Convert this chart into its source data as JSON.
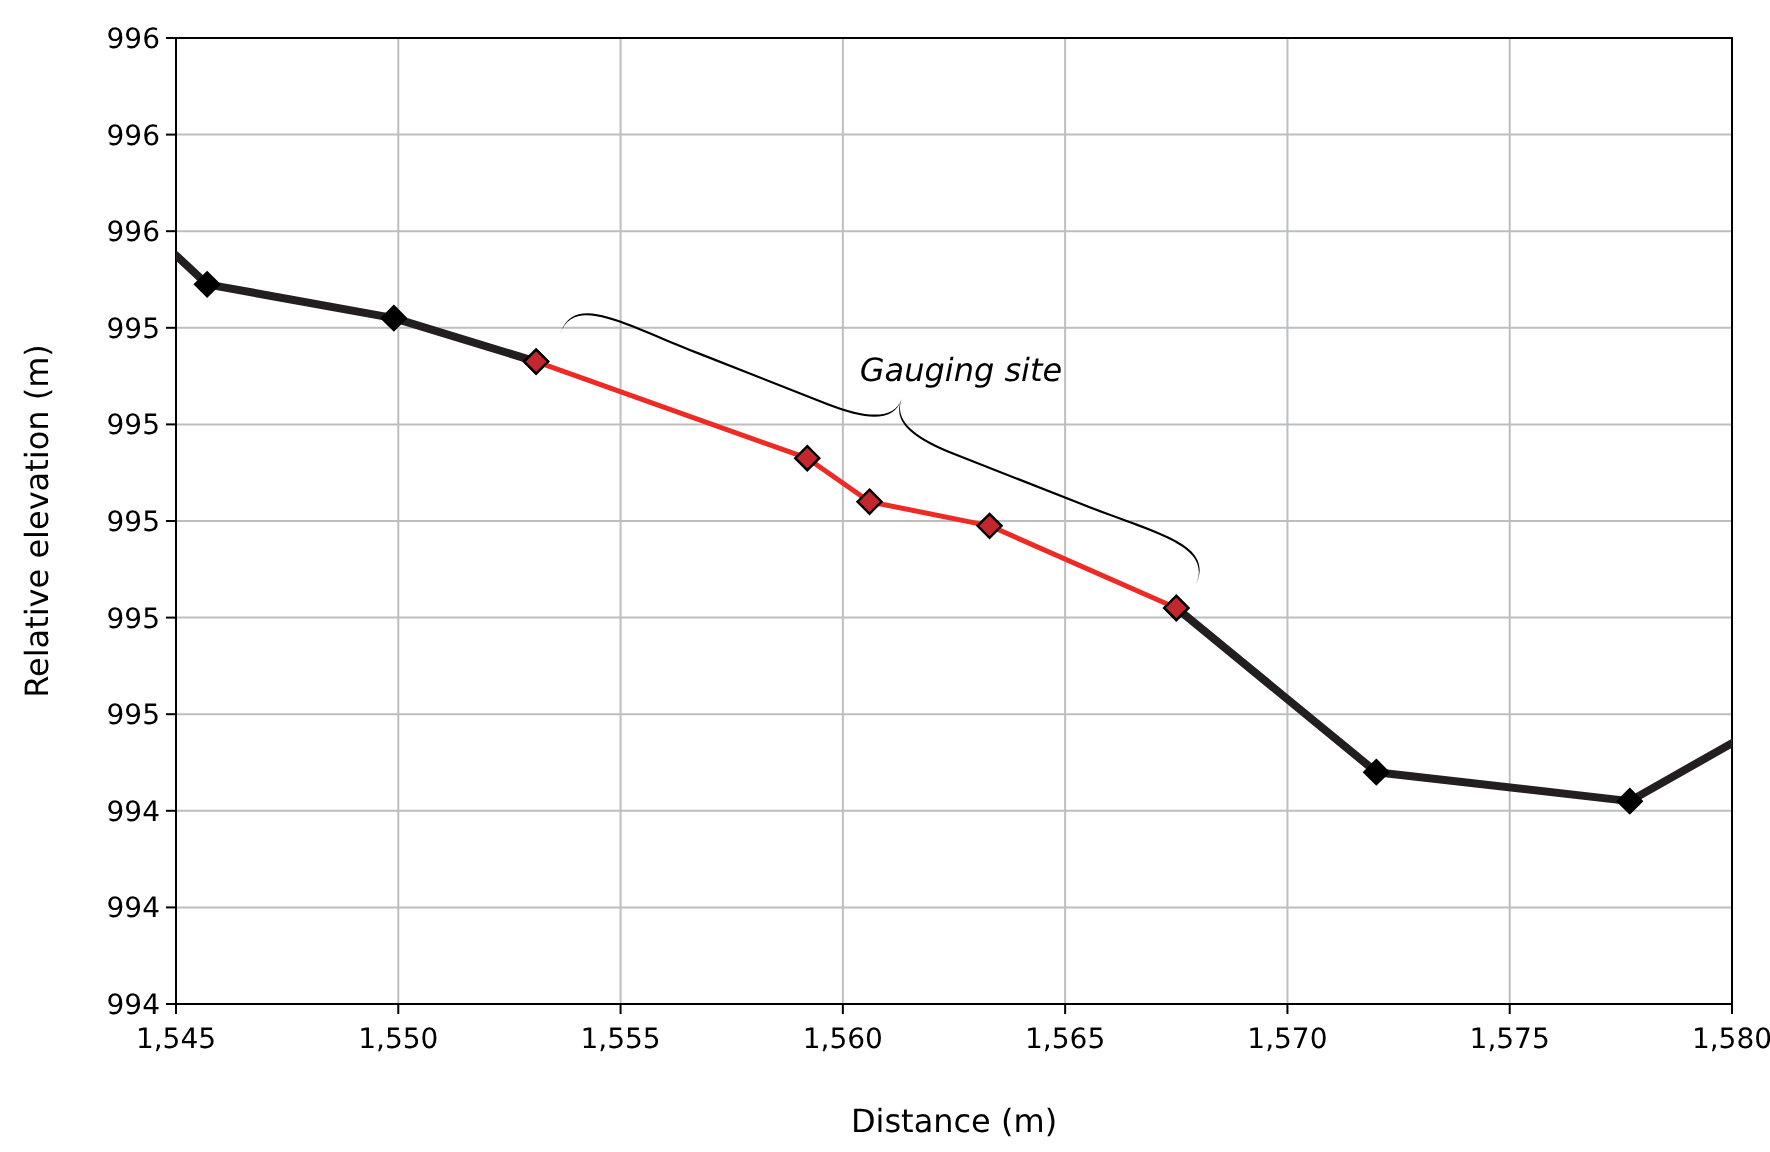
{
  "chart_data": {
    "type": "line",
    "xlabel": "Distance (m)",
    "ylabel": "Relative elevation (m)",
    "xlim": [
      1545,
      1580
    ],
    "xticks": [
      {
        "value": 1545,
        "label": "1,545"
      },
      {
        "value": 1550,
        "label": "1,550"
      },
      {
        "value": 1555,
        "label": "1,555"
      },
      {
        "value": 1560,
        "label": "1,560"
      },
      {
        "value": 1565,
        "label": "1,565"
      },
      {
        "value": 1570,
        "label": "1,570"
      },
      {
        "value": 1575,
        "label": "1,575"
      },
      {
        "value": 1580,
        "label": "1,580"
      }
    ],
    "ylim": [
      994,
      996
    ],
    "yticks": [
      {
        "value": 994,
        "label": "994"
      },
      {
        "value": 994.2,
        "label": "994"
      },
      {
        "value": 994.4,
        "label": "994"
      },
      {
        "value": 994.6,
        "label": "995"
      },
      {
        "value": 994.8,
        "label": "995"
      },
      {
        "value": 995,
        "label": "995"
      },
      {
        "value": 995.2,
        "label": "995"
      },
      {
        "value": 995.4,
        "label": "995"
      },
      {
        "value": 995.6,
        "label": "996"
      },
      {
        "value": 995.8,
        "label": "996"
      },
      {
        "value": 996,
        "label": "996"
      }
    ],
    "grid": true,
    "marker": "diamond",
    "line_style": "solid",
    "series": [
      {
        "color": "#231f20",
        "x": [
          1545,
          1545.7,
          1549.9,
          1553.1,
          1559.2,
          1560.6,
          1563.3,
          1567.5,
          1572,
          1577.7,
          1580
        ],
        "values": [
          995.55,
          995.49,
          995.42,
          995.33,
          null,
          null,
          null,
          994.82,
          994.48,
          994.42,
          994.54
        ]
      },
      {
        "color": "#ee2a24",
        "x": [
          1553.1,
          1559.2,
          1560.6,
          1563.3,
          1567.5
        ],
        "values": [
          995.33,
          995.13,
          995.04,
          994.99,
          994.82
        ]
      }
    ],
    "annotations": [
      "Gauging site"
    ]
  }
}
